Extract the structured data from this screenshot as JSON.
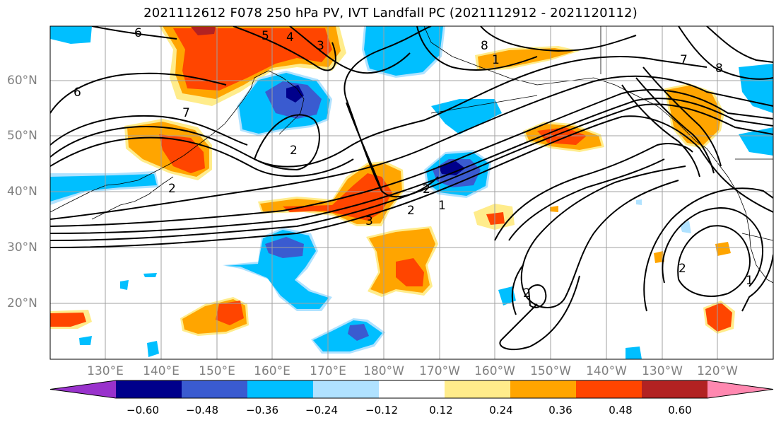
{
  "title": "2021112612 F078 250 hPa PV, IVT Landfall PC (2021112912 - 2021120112)",
  "lat_labels": [
    "60°N",
    "50°N",
    "40°N",
    "30°N",
    "20°N"
  ],
  "lon_labels": [
    "130°E",
    "140°E",
    "150°E",
    "160°E",
    "170°E",
    "180°W",
    "170°W",
    "160°W",
    "150°W",
    "140°W",
    "130°W",
    "120°W"
  ],
  "colorbar": {
    "ticks": [
      "−0.60",
      "−0.48",
      "−0.36",
      "−0.24",
      "−0.12",
      "0.12",
      "0.24",
      "0.36",
      "0.48",
      "0.60"
    ],
    "colors": [
      "#9932cc",
      "#00008b",
      "#3a5bd0",
      "#00bfff",
      "#b0e2ff",
      "#ffffff",
      "#ffec8b",
      "#ffa500",
      "#ff4500",
      "#b22222",
      "#ff88b0"
    ]
  },
  "pv_contour_labels": [
    "6",
    "5",
    "4",
    "3",
    "7",
    "8",
    "6",
    "2",
    "2",
    "1",
    "2",
    "3",
    "1",
    "2",
    "2",
    "2",
    "1",
    "7",
    "8"
  ]
}
